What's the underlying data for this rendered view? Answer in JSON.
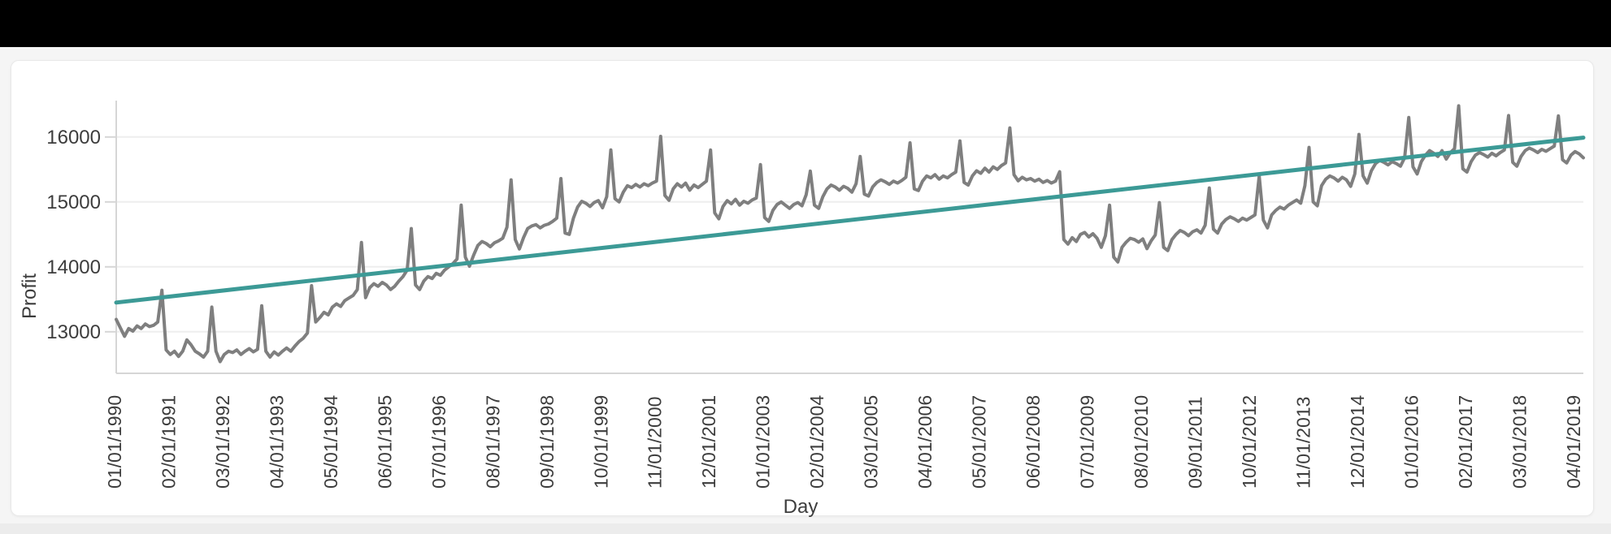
{
  "page": {
    "background_color": "#f5f5f5",
    "card_background_color": "#ffffff",
    "top_bar_color": "#000000"
  },
  "chart_data": {
    "type": "line",
    "xlabel": "Day",
    "ylabel": "Profit",
    "x_frequency": "monthly",
    "x_tick_interval_months": 13,
    "x_tick_labels": [
      "01/01/1990",
      "02/01/1991",
      "03/01/1992",
      "04/01/1993",
      "05/01/1994",
      "06/01/1995",
      "07/01/1996",
      "08/01/1997",
      "09/01/1998",
      "10/01/1999",
      "11/01/2000",
      "12/01/2001",
      "01/01/2003",
      "02/01/2004",
      "03/01/2005",
      "04/01/2006",
      "05/01/2007",
      "06/01/2008",
      "07/01/2009",
      "08/01/2010",
      "09/01/2011",
      "10/01/2012",
      "11/01/2013",
      "12/01/2014",
      "01/01/2016",
      "02/01/2017",
      "03/01/2018",
      "04/01/2019"
    ],
    "y_ticks": [
      13000,
      14000,
      15000,
      16000
    ],
    "ylim": [
      12360,
      16560
    ],
    "grid": "horizontal",
    "legend": "none",
    "colors": {
      "series": "#7f7f7f",
      "trend": "#3c9a96",
      "grid": "#eeeeee",
      "axis": "#d6d6d6",
      "tick_text": "#3d3d3d"
    },
    "series": [
      {
        "name": "Profit",
        "type": "line",
        "color": "#7f7f7f",
        "frequency": "monthly",
        "start": "01/01/1990",
        "end": "06/01/2019",
        "values_by_year": [
          {
            "year": 1990,
            "values": [
              13190,
              13060,
              12930,
              13050,
              13010,
              13090,
              13050,
              13120,
              13080,
              13100,
              13150,
              13640
            ]
          },
          {
            "year": 1991,
            "values": [
              12720,
              12650,
              12700,
              12620,
              12700,
              12875,
              12800,
              12700,
              12660,
              12610,
              12700,
              13380
            ]
          },
          {
            "year": 1992,
            "values": [
              12700,
              12540,
              12650,
              12700,
              12680,
              12720,
              12650,
              12700,
              12740,
              12690,
              12730,
              13400
            ]
          },
          {
            "year": 1993,
            "values": [
              12700,
              12610,
              12690,
              12640,
              12700,
              12750,
              12700,
              12780,
              12850,
              12900,
              12980,
              13710
            ]
          },
          {
            "year": 1994,
            "values": [
              13150,
              13220,
              13300,
              13260,
              13380,
              13430,
              13390,
              13480,
              13520,
              13560,
              13650,
              14375
            ]
          },
          {
            "year": 1995,
            "values": [
              13525,
              13680,
              13740,
              13700,
              13760,
              13720,
              13650,
              13700,
              13780,
              13850,
              13950,
              14590
            ]
          },
          {
            "year": 1996,
            "values": [
              13720,
              13650,
              13780,
              13850,
              13820,
              13900,
              13870,
              13950,
              14000,
              14050,
              14120,
              14950
            ]
          },
          {
            "year": 1997,
            "values": [
              14150,
              14010,
              14180,
              14330,
              14390,
              14360,
              14310,
              14370,
              14400,
              14440,
              14610,
              15340
            ]
          },
          {
            "year": 1998,
            "values": [
              14420,
              14275,
              14450,
              14590,
              14630,
              14650,
              14600,
              14640,
              14660,
              14700,
              14750,
              15360
            ]
          },
          {
            "year": 1999,
            "values": [
              14520,
              14500,
              14750,
              14920,
              15010,
              14980,
              14930,
              14990,
              15020,
              14910,
              15080,
              15800
            ]
          },
          {
            "year": 2000,
            "values": [
              15050,
              15000,
              15150,
              15250,
              15220,
              15270,
              15230,
              15280,
              15250,
              15290,
              15320,
              16010
            ]
          },
          {
            "year": 2001,
            "values": [
              15100,
              15025,
              15200,
              15280,
              15230,
              15290,
              15180,
              15260,
              15220,
              15270,
              15320,
              15800
            ]
          },
          {
            "year": 2002,
            "values": [
              14830,
              14740,
              14930,
              15020,
              14970,
              15040,
              14950,
              15010,
              14980,
              15030,
              15060,
              15575
            ]
          },
          {
            "year": 2003,
            "values": [
              14760,
              14700,
              14870,
              14960,
              15000,
              14950,
              14900,
              14960,
              14990,
              14940,
              15110,
              15475
            ]
          },
          {
            "year": 2004,
            "values": [
              14950,
              14900,
              15080,
              15200,
              15260,
              15230,
              15180,
              15240,
              15210,
              15150,
              15280,
              15700
            ]
          },
          {
            "year": 2005,
            "values": [
              15120,
              15090,
              15230,
              15300,
              15340,
              15310,
              15270,
              15320,
              15290,
              15330,
              15380,
              15910
            ]
          },
          {
            "year": 2006,
            "values": [
              15200,
              15175,
              15320,
              15400,
              15370,
              15420,
              15350,
              15400,
              15370,
              15420,
              15460,
              15940
            ]
          },
          {
            "year": 2007,
            "values": [
              15300,
              15260,
              15400,
              15480,
              15440,
              15520,
              15460,
              15540,
              15500,
              15560,
              15600,
              16140
            ]
          },
          {
            "year": 2008,
            "values": [
              15420,
              15325,
              15380,
              15340,
              15360,
              15320,
              15350,
              15300,
              15330,
              15290,
              15320,
              15465
            ]
          },
          {
            "year": 2009,
            "values": [
              14420,
              14350,
              14450,
              14390,
              14500,
              14530,
              14460,
              14510,
              14440,
              14300,
              14480,
              14950
            ]
          },
          {
            "year": 2010,
            "values": [
              14150,
              14075,
              14300,
              14380,
              14440,
              14420,
              14380,
              14430,
              14280,
              14400,
              14490,
              14990
            ]
          },
          {
            "year": 2011,
            "values": [
              14300,
              14250,
              14420,
              14500,
              14560,
              14530,
              14480,
              14540,
              14570,
              14520,
              14640,
              15215
            ]
          },
          {
            "year": 2012,
            "values": [
              14580,
              14520,
              14660,
              14730,
              14770,
              14740,
              14700,
              14750,
              14720,
              14760,
              14800,
              15400
            ]
          },
          {
            "year": 2013,
            "values": [
              14720,
              14600,
              14800,
              14870,
              14920,
              14890,
              14950,
              14990,
              15030,
              14980,
              15250,
              15840
            ]
          },
          {
            "year": 2014,
            "values": [
              15000,
              14940,
              15250,
              15350,
              15400,
              15370,
              15320,
              15380,
              15340,
              15240,
              15430,
              16040
            ]
          },
          {
            "year": 2015,
            "values": [
              15400,
              15290,
              15480,
              15590,
              15640,
              15610,
              15570,
              15620,
              15590,
              15550,
              15680,
              16300
            ]
          },
          {
            "year": 2016,
            "values": [
              15540,
              15430,
              15620,
              15720,
              15790,
              15750,
              15700,
              15790,
              15660,
              15760,
              15820,
              16480
            ]
          },
          {
            "year": 2017,
            "values": [
              15510,
              15460,
              15620,
              15720,
              15760,
              15730,
              15690,
              15750,
              15710,
              15760,
              15800,
              16330
            ]
          },
          {
            "year": 2018,
            "values": [
              15610,
              15550,
              15700,
              15790,
              15830,
              15800,
              15760,
              15810,
              15780,
              15820,
              15860,
              16325
            ]
          },
          {
            "year": 2019,
            "values": [
              15650,
              15600,
              15720,
              15775,
              15740,
              15680
            ]
          }
        ]
      },
      {
        "name": "Linear trend",
        "type": "straight-line",
        "color": "#3c9a96",
        "start_value": 13450,
        "end_value": 15990
      }
    ]
  }
}
